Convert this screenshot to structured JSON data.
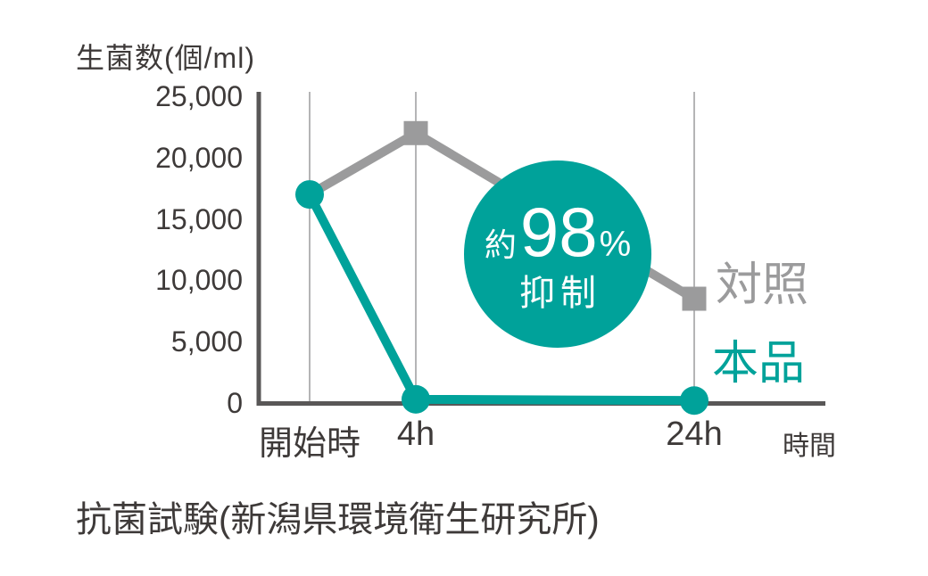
{
  "chart_data": {
    "type": "line",
    "title": "",
    "ylabel": "生菌数(個/ml)",
    "xlabel": "時間",
    "categories": [
      "開始時",
      "4h",
      "24h"
    ],
    "y_tick_labels": [
      "25,000",
      "20,000",
      "15,000",
      "10,000",
      "5,000",
      "0"
    ],
    "y_tick_values": [
      25000,
      20000,
      15000,
      10000,
      5000,
      0
    ],
    "ylim": [
      0,
      25000
    ],
    "grid": "vertical-only",
    "legend_position": "right",
    "annotations": [
      "約98%抑制"
    ],
    "series": [
      {
        "name": "対照",
        "color": "#9b9b9c",
        "marker": "square",
        "marker_indices": [
          1,
          2
        ],
        "values": [
          17000,
          22000,
          8500
        ]
      },
      {
        "name": "本品",
        "color": "#00a29a",
        "marker": "circle",
        "marker_indices": [
          0,
          1,
          2
        ],
        "values": [
          17000,
          300,
          200
        ]
      }
    ]
  },
  "badge": {
    "prefix": "約",
    "value": "98",
    "unit": "%",
    "suffix": "抑制",
    "bg": "#00a29a",
    "text_color": "#ffffff"
  },
  "caption": "抗菌試験(新潟県環境衛生研究所)",
  "colors": {
    "axis": "#595757",
    "grid": "#b5b5b6",
    "text": "#3e3a39",
    "teal": "#00a29a",
    "gray": "#9b9b9c",
    "background": "#ffffff"
  }
}
